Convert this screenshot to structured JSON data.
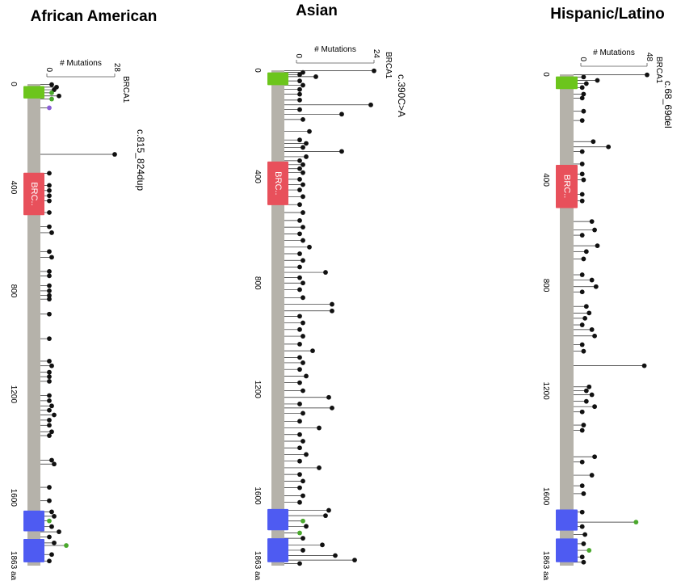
{
  "chart_data": [
    {
      "type": "lollipop",
      "title": "African American",
      "gene": "BRCA1",
      "axis_label": "# Mutations",
      "max_mutations": 28,
      "max_aa": 1863,
      "aa_unit": "aa",
      "position_ticks": [
        0,
        400,
        800,
        1200,
        1600,
        1863
      ],
      "count_ticks": [
        0,
        28
      ],
      "domains": [
        {
          "label": "",
          "start": 8,
          "end": 56,
          "color": "#6cc51c"
        },
        {
          "label": "BRC..",
          "start": 343,
          "end": 507,
          "color": "#e8505b"
        },
        {
          "label": "",
          "start": 1650,
          "end": 1730,
          "color": "#4e5bf2"
        },
        {
          "label": "",
          "start": 1760,
          "end": 1850,
          "color": "#4e5bf2"
        }
      ],
      "annotation": {
        "text": "c.815_824dup",
        "position": 272
      },
      "mutations": [
        {
          "pos": 2,
          "count": 2
        },
        {
          "pos": 12,
          "count": 4
        },
        {
          "pos": 22,
          "count": 3
        },
        {
          "pos": 34,
          "count": 2,
          "color": "#4aa82c"
        },
        {
          "pos": 46,
          "count": 5
        },
        {
          "pos": 58,
          "count": 2,
          "color": "#4aa82c"
        },
        {
          "pos": 92,
          "count": 1,
          "color": "#8a5fd6"
        },
        {
          "pos": 272,
          "count": 28
        },
        {
          "pos": 345,
          "count": 1
        },
        {
          "pos": 392,
          "count": 1
        },
        {
          "pos": 412,
          "count": 1
        },
        {
          "pos": 432,
          "count": 1
        },
        {
          "pos": 452,
          "count": 1
        },
        {
          "pos": 497,
          "count": 1
        },
        {
          "pos": 552,
          "count": 1
        },
        {
          "pos": 575,
          "count": 2
        },
        {
          "pos": 648,
          "count": 1
        },
        {
          "pos": 670,
          "count": 2
        },
        {
          "pos": 725,
          "count": 1
        },
        {
          "pos": 742,
          "count": 1
        },
        {
          "pos": 780,
          "count": 1
        },
        {
          "pos": 800,
          "count": 1
        },
        {
          "pos": 818,
          "count": 1
        },
        {
          "pos": 832,
          "count": 1
        },
        {
          "pos": 890,
          "count": 1
        },
        {
          "pos": 985,
          "count": 1
        },
        {
          "pos": 1072,
          "count": 1
        },
        {
          "pos": 1090,
          "count": 2
        },
        {
          "pos": 1115,
          "count": 1
        },
        {
          "pos": 1132,
          "count": 1
        },
        {
          "pos": 1150,
          "count": 1
        },
        {
          "pos": 1205,
          "count": 1
        },
        {
          "pos": 1225,
          "count": 1
        },
        {
          "pos": 1245,
          "count": 2
        },
        {
          "pos": 1262,
          "count": 1
        },
        {
          "pos": 1280,
          "count": 3
        },
        {
          "pos": 1300,
          "count": 1
        },
        {
          "pos": 1320,
          "count": 1
        },
        {
          "pos": 1345,
          "count": 2
        },
        {
          "pos": 1360,
          "count": 1
        },
        {
          "pos": 1455,
          "count": 2
        },
        {
          "pos": 1470,
          "count": 3
        },
        {
          "pos": 1560,
          "count": 1
        },
        {
          "pos": 1612,
          "count": 1
        },
        {
          "pos": 1655,
          "count": 2
        },
        {
          "pos": 1672,
          "count": 3
        },
        {
          "pos": 1690,
          "count": 1,
          "color": "#4aa82c"
        },
        {
          "pos": 1712,
          "count": 2
        },
        {
          "pos": 1732,
          "count": 5
        },
        {
          "pos": 1752,
          "count": 1
        },
        {
          "pos": 1775,
          "count": 3
        },
        {
          "pos": 1785,
          "count": 8,
          "color": "#4aa82c"
        },
        {
          "pos": 1820,
          "count": 2
        },
        {
          "pos": 1845,
          "count": 1
        }
      ]
    },
    {
      "type": "lollipop",
      "title": "Asian",
      "gene": "BRCA1",
      "axis_label": "# Mutations",
      "max_mutations": 24,
      "max_aa": 1863,
      "aa_unit": "aa",
      "position_ticks": [
        0,
        400,
        800,
        1200,
        1600,
        1863
      ],
      "count_ticks": [
        0,
        24
      ],
      "domains": [
        {
          "label": "",
          "start": 8,
          "end": 56,
          "color": "#6cc51c"
        },
        {
          "label": "BRC..",
          "start": 343,
          "end": 507,
          "color": "#e8505b"
        },
        {
          "label": "",
          "start": 1650,
          "end": 1730,
          "color": "#4e5bf2"
        },
        {
          "label": "",
          "start": 1760,
          "end": 1850,
          "color": "#4e5bf2"
        }
      ],
      "annotation": {
        "text": "c.390C>A",
        "position": 130
      },
      "mutations": [
        {
          "pos": 2,
          "count": 24
        },
        {
          "pos": 8,
          "count": 2
        },
        {
          "pos": 16,
          "count": 1
        },
        {
          "pos": 24,
          "count": 6
        },
        {
          "pos": 40,
          "count": 1
        },
        {
          "pos": 56,
          "count": 2
        },
        {
          "pos": 72,
          "count": 1
        },
        {
          "pos": 90,
          "count": 1
        },
        {
          "pos": 112,
          "count": 1
        },
        {
          "pos": 130,
          "count": 23
        },
        {
          "pos": 148,
          "count": 1
        },
        {
          "pos": 165,
          "count": 14
        },
        {
          "pos": 185,
          "count": 2
        },
        {
          "pos": 230,
          "count": 4
        },
        {
          "pos": 262,
          "count": 1
        },
        {
          "pos": 275,
          "count": 3
        },
        {
          "pos": 290,
          "count": 2
        },
        {
          "pos": 305,
          "count": 14
        },
        {
          "pos": 325,
          "count": 3
        },
        {
          "pos": 340,
          "count": 1
        },
        {
          "pos": 355,
          "count": 2
        },
        {
          "pos": 370,
          "count": 1
        },
        {
          "pos": 385,
          "count": 2
        },
        {
          "pos": 410,
          "count": 1
        },
        {
          "pos": 430,
          "count": 2
        },
        {
          "pos": 450,
          "count": 1
        },
        {
          "pos": 475,
          "count": 2
        },
        {
          "pos": 505,
          "count": 1
        },
        {
          "pos": 535,
          "count": 2
        },
        {
          "pos": 565,
          "count": 1
        },
        {
          "pos": 590,
          "count": 2
        },
        {
          "pos": 615,
          "count": 1
        },
        {
          "pos": 640,
          "count": 2
        },
        {
          "pos": 665,
          "count": 4
        },
        {
          "pos": 690,
          "count": 1
        },
        {
          "pos": 715,
          "count": 2
        },
        {
          "pos": 740,
          "count": 1
        },
        {
          "pos": 760,
          "count": 9
        },
        {
          "pos": 780,
          "count": 1
        },
        {
          "pos": 800,
          "count": 2
        },
        {
          "pos": 825,
          "count": 1
        },
        {
          "pos": 855,
          "count": 2
        },
        {
          "pos": 880,
          "count": 11
        },
        {
          "pos": 905,
          "count": 11
        },
        {
          "pos": 925,
          "count": 1
        },
        {
          "pos": 950,
          "count": 2
        },
        {
          "pos": 975,
          "count": 1
        },
        {
          "pos": 1000,
          "count": 2
        },
        {
          "pos": 1030,
          "count": 1
        },
        {
          "pos": 1055,
          "count": 5
        },
        {
          "pos": 1080,
          "count": 1
        },
        {
          "pos": 1100,
          "count": 2
        },
        {
          "pos": 1125,
          "count": 1
        },
        {
          "pos": 1150,
          "count": 3
        },
        {
          "pos": 1175,
          "count": 1
        },
        {
          "pos": 1205,
          "count": 2
        },
        {
          "pos": 1230,
          "count": 10
        },
        {
          "pos": 1255,
          "count": 1
        },
        {
          "pos": 1270,
          "count": 11
        },
        {
          "pos": 1290,
          "count": 2
        },
        {
          "pos": 1320,
          "count": 1
        },
        {
          "pos": 1345,
          "count": 7
        },
        {
          "pos": 1370,
          "count": 1
        },
        {
          "pos": 1395,
          "count": 2
        },
        {
          "pos": 1420,
          "count": 1
        },
        {
          "pos": 1445,
          "count": 3
        },
        {
          "pos": 1470,
          "count": 1
        },
        {
          "pos": 1495,
          "count": 7
        },
        {
          "pos": 1520,
          "count": 1
        },
        {
          "pos": 1545,
          "count": 2
        },
        {
          "pos": 1570,
          "count": 1
        },
        {
          "pos": 1600,
          "count": 2
        },
        {
          "pos": 1625,
          "count": 1
        },
        {
          "pos": 1655,
          "count": 10
        },
        {
          "pos": 1675,
          "count": 9
        },
        {
          "pos": 1695,
          "count": 2,
          "color": "#4aa82c"
        },
        {
          "pos": 1715,
          "count": 3
        },
        {
          "pos": 1740,
          "count": 1,
          "color": "#4aa82c"
        },
        {
          "pos": 1760,
          "count": 2
        },
        {
          "pos": 1785,
          "count": 8
        },
        {
          "pos": 1805,
          "count": 2
        },
        {
          "pos": 1825,
          "count": 12
        },
        {
          "pos": 1842,
          "count": 18
        },
        {
          "pos": 1855,
          "count": 1
        }
      ]
    },
    {
      "type": "lollipop",
      "title": "Hispanic/Latino",
      "gene": "BRCA1",
      "axis_label": "# Mutations",
      "max_mutations": 48,
      "max_aa": 1863,
      "aa_unit": "aa",
      "position_ticks": [
        0,
        400,
        800,
        1200,
        1600,
        1863
      ],
      "count_ticks": [
        0,
        48
      ],
      "domains": [
        {
          "label": "",
          "start": 8,
          "end": 56,
          "color": "#6cc51c"
        },
        {
          "label": "BRC..",
          "start": 343,
          "end": 507,
          "color": "#e8505b"
        },
        {
          "label": "",
          "start": 1650,
          "end": 1730,
          "color": "#4e5bf2"
        },
        {
          "label": "",
          "start": 1760,
          "end": 1850,
          "color": "#4e5bf2"
        }
      ],
      "annotation": {
        "text": "c.68_69del",
        "position": 23
      },
      "mutations": [
        {
          "pos": 2,
          "count": 48
        },
        {
          "pos": 10,
          "count": 2
        },
        {
          "pos": 23,
          "count": 12
        },
        {
          "pos": 35,
          "count": 4
        },
        {
          "pos": 50,
          "count": 1
        },
        {
          "pos": 75,
          "count": 2
        },
        {
          "pos": 90,
          "count": 1
        },
        {
          "pos": 140,
          "count": 2
        },
        {
          "pos": 175,
          "count": 1
        },
        {
          "pos": 255,
          "count": 9
        },
        {
          "pos": 275,
          "count": 20
        },
        {
          "pos": 293,
          "count": 1
        },
        {
          "pos": 340,
          "count": 1
        },
        {
          "pos": 378,
          "count": 1
        },
        {
          "pos": 400,
          "count": 2
        },
        {
          "pos": 455,
          "count": 1
        },
        {
          "pos": 480,
          "count": 1
        },
        {
          "pos": 558,
          "count": 8
        },
        {
          "pos": 590,
          "count": 10
        },
        {
          "pos": 610,
          "count": 1
        },
        {
          "pos": 650,
          "count": 12
        },
        {
          "pos": 672,
          "count": 4
        },
        {
          "pos": 700,
          "count": 2
        },
        {
          "pos": 760,
          "count": 1
        },
        {
          "pos": 780,
          "count": 8
        },
        {
          "pos": 805,
          "count": 11
        },
        {
          "pos": 825,
          "count": 1
        },
        {
          "pos": 880,
          "count": 4
        },
        {
          "pos": 905,
          "count": 6
        },
        {
          "pos": 925,
          "count": 3
        },
        {
          "pos": 950,
          "count": 1
        },
        {
          "pos": 968,
          "count": 8
        },
        {
          "pos": 992,
          "count": 10
        },
        {
          "pos": 1025,
          "count": 1
        },
        {
          "pos": 1050,
          "count": 2
        },
        {
          "pos": 1105,
          "count": 46
        },
        {
          "pos": 1185,
          "count": 6
        },
        {
          "pos": 1200,
          "count": 4
        },
        {
          "pos": 1215,
          "count": 8
        },
        {
          "pos": 1240,
          "count": 4
        },
        {
          "pos": 1260,
          "count": 10
        },
        {
          "pos": 1280,
          "count": 1
        },
        {
          "pos": 1330,
          "count": 2
        },
        {
          "pos": 1350,
          "count": 1
        },
        {
          "pos": 1450,
          "count": 10
        },
        {
          "pos": 1470,
          "count": 1
        },
        {
          "pos": 1520,
          "count": 8
        },
        {
          "pos": 1560,
          "count": 1
        },
        {
          "pos": 1590,
          "count": 2
        },
        {
          "pos": 1660,
          "count": 1
        },
        {
          "pos": 1698,
          "count": 40,
          "color": "#4aa82c"
        },
        {
          "pos": 1715,
          "count": 1
        },
        {
          "pos": 1745,
          "count": 3
        },
        {
          "pos": 1780,
          "count": 2
        },
        {
          "pos": 1805,
          "count": 6,
          "color": "#4aa82c"
        },
        {
          "pos": 1830,
          "count": 1
        },
        {
          "pos": 1850,
          "count": 2
        }
      ]
    }
  ],
  "colors": {
    "protein_bar": "#b5b2aa",
    "stem": "#222222",
    "head": "#111111"
  }
}
